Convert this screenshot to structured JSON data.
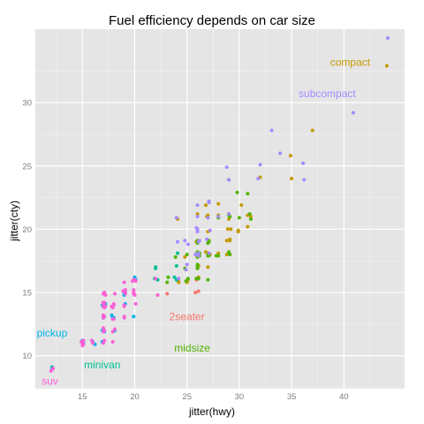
{
  "chart_data": {
    "type": "scatter",
    "title": "Fuel efficiency depends on car size",
    "xlabel": "jitter(hwy)",
    "ylabel": "jitter(cty)",
    "xlim": [
      10.5,
      45.8
    ],
    "ylim": [
      7.4,
      35.8
    ],
    "xticks": [
      15,
      20,
      25,
      30,
      35,
      40
    ],
    "yticks": [
      10,
      15,
      20,
      25,
      30
    ],
    "grid": true,
    "legend": "none",
    "colors": {
      "2seater": "#F8766D",
      "compact": "#C49A00",
      "midsize": "#53B400",
      "minivan": "#00C094",
      "pickup": "#00B6EB",
      "subcompact": "#A58AFF",
      "suv": "#FB61D7"
    },
    "annotations": [
      {
        "label": "compact",
        "x": 40.6,
        "y": 33.2,
        "class": "compact"
      },
      {
        "label": "subcompact",
        "x": 38.4,
        "y": 30.7,
        "class": "subcompact"
      },
      {
        "label": "2seater",
        "x": 25.0,
        "y": 13.1,
        "class": "2seater"
      },
      {
        "label": "midsize",
        "x": 25.5,
        "y": 10.6,
        "class": "midsize"
      },
      {
        "label": "minivan",
        "x": 16.9,
        "y": 9.3,
        "class": "minivan"
      },
      {
        "label": "pickup",
        "x": 12.1,
        "y": 11.8,
        "class": "pickup"
      },
      {
        "label": "suv",
        "x": 11.9,
        "y": 8.0,
        "class": "suv"
      }
    ],
    "series": [
      {
        "class": "2seater",
        "points": [
          [
            26.1,
            15.1
          ],
          [
            25.9,
            16.0
          ],
          [
            24.2,
            15.9
          ],
          [
            25.8,
            15.0
          ],
          [
            23.1,
            14.9
          ]
        ]
      },
      {
        "class": "compact",
        "points": [
          [
            44.1,
            32.9
          ],
          [
            37.0,
            27.8
          ],
          [
            34.9,
            25.8
          ],
          [
            35.0,
            24.0
          ],
          [
            29.1,
            21.0
          ],
          [
            29.0,
            20.8
          ],
          [
            29.9,
            19.9
          ],
          [
            28.0,
            21.1
          ],
          [
            26.9,
            21.0
          ],
          [
            26.0,
            18.1
          ],
          [
            27.2,
            18.0
          ],
          [
            26.8,
            18.2
          ],
          [
            24.8,
            17.8
          ],
          [
            30.2,
            21.9
          ],
          [
            30.8,
            21.1
          ],
          [
            31.1,
            21.0
          ],
          [
            29.1,
            19.2
          ],
          [
            28.0,
            18.1
          ],
          [
            28.8,
            18.0
          ],
          [
            27.0,
            17.0
          ],
          [
            26.1,
            17.1
          ],
          [
            25.1,
            16.0
          ],
          [
            25.0,
            15.8
          ],
          [
            26.1,
            16.2
          ],
          [
            29.1,
            19.1
          ],
          [
            29.0,
            23.9
          ],
          [
            26.0,
            21.2
          ],
          [
            24.1,
            20.8
          ],
          [
            29.2,
            20.0
          ],
          [
            30.8,
            20.2
          ],
          [
            28.8,
            19.1
          ],
          [
            32.0,
            24.1
          ],
          [
            27.0,
            19.8
          ],
          [
            26.8,
            21.9
          ],
          [
            28.0,
            22.0
          ],
          [
            28.9,
            20.0
          ],
          [
            24.2,
            15.8
          ],
          [
            26.0,
            17.8
          ],
          [
            25.9,
            19.0
          ],
          [
            27.0,
            21.1
          ],
          [
            29.9,
            19.8
          ]
        ]
      },
      {
        "class": "midsize",
        "points": [
          [
            29.1,
            21.0
          ],
          [
            29.0,
            18.2
          ],
          [
            27.0,
            18.0
          ],
          [
            27.1,
            17.9
          ],
          [
            26.0,
            17.8
          ],
          [
            26.1,
            16.1
          ],
          [
            27.0,
            16.0
          ],
          [
            24.9,
            15.9
          ],
          [
            26.0,
            19.1
          ],
          [
            27.1,
            19.0
          ],
          [
            26.0,
            18.9
          ],
          [
            30.0,
            20.9
          ],
          [
            31.0,
            21.2
          ],
          [
            29.0,
            21.1
          ],
          [
            28.0,
            20.9
          ],
          [
            29.0,
            18.1
          ],
          [
            27.8,
            17.9
          ],
          [
            26.0,
            17.2
          ],
          [
            24.0,
            16.0
          ],
          [
            23.2,
            16.2
          ],
          [
            23.1,
            15.8
          ],
          [
            25.1,
            16.1
          ],
          [
            26.0,
            16.9
          ],
          [
            26.1,
            19.0
          ],
          [
            25.0,
            18.0
          ],
          [
            23.9,
            17.8
          ],
          [
            26.2,
            18.1
          ],
          [
            27.0,
            18.9
          ],
          [
            27.1,
            19.1
          ],
          [
            30.8,
            22.8
          ],
          [
            29.0,
            21.2
          ],
          [
            31.1,
            20.8
          ],
          [
            26.0,
            17.0
          ],
          [
            25.9,
            16.1
          ],
          [
            29.8,
            22.9
          ],
          [
            27.0,
            17.9
          ],
          [
            29.1,
            18.0
          ],
          [
            26.0,
            18.2
          ],
          [
            28.0,
            17.9
          ],
          [
            26.2,
            17.9
          ],
          [
            24.8,
            16.9
          ]
        ]
      },
      {
        "class": "minivan",
        "points": [
          [
            17.1,
            15.0
          ],
          [
            21.9,
            16.1
          ],
          [
            22.2,
            16.0
          ],
          [
            24.1,
            18.1
          ],
          [
            24.0,
            16.0
          ],
          [
            22.0,
            17.0
          ],
          [
            17.0,
            14.1
          ],
          [
            12.1,
            9.1
          ],
          [
            24.0,
            17.1
          ],
          [
            23.8,
            16.2
          ],
          [
            22.0,
            16.9
          ]
        ]
      },
      {
        "class": "pickup",
        "points": [
          [
            15.1,
            11.0
          ],
          [
            17.1,
            14.0
          ],
          [
            17.0,
            14.2
          ],
          [
            17.1,
            13.9
          ],
          [
            19.1,
            15.0
          ],
          [
            15.0,
            11.1
          ],
          [
            17.1,
            11.9
          ],
          [
            18.1,
            12.0
          ],
          [
            12.1,
            9.0
          ],
          [
            17.2,
            14.1
          ],
          [
            19.0,
            14.0
          ],
          [
            17.0,
            13.0
          ],
          [
            19.0,
            15.0
          ],
          [
            16.9,
            11.1
          ],
          [
            15.0,
            11.2
          ],
          [
            17.1,
            13.9
          ],
          [
            17.1,
            13.1
          ],
          [
            19.9,
            13.1
          ],
          [
            20.1,
            16.0
          ],
          [
            15.9,
            11.2
          ],
          [
            16.9,
            14.0
          ],
          [
            17.9,
            13.0
          ],
          [
            16.2,
            10.9
          ],
          [
            19.0,
            14.8
          ],
          [
            16.9,
            12.0
          ],
          [
            19.1,
            14.1
          ],
          [
            17.0,
            13.9
          ],
          [
            20.0,
            16.2
          ],
          [
            18.0,
            13.0
          ],
          [
            17.8,
            13.2
          ],
          [
            17.0,
            14.0
          ],
          [
            16.0,
            11.1
          ],
          [
            19.0,
            13.0
          ]
        ]
      },
      {
        "class": "subcompact",
        "points": [
          [
            44.2,
            35.1
          ],
          [
            40.9,
            29.2
          ],
          [
            36.1,
            25.2
          ],
          [
            36.2,
            23.9
          ],
          [
            33.1,
            27.8
          ],
          [
            33.9,
            26.0
          ],
          [
            32.0,
            25.1
          ],
          [
            31.8,
            24.0
          ],
          [
            28.8,
            24.9
          ],
          [
            29.0,
            23.9
          ],
          [
            27.1,
            22.2
          ],
          [
            26.0,
            21.9
          ],
          [
            25.9,
            20.1
          ],
          [
            26.0,
            20.0
          ],
          [
            24.0,
            20.9
          ],
          [
            24.1,
            19.0
          ],
          [
            24.2,
            16.1
          ],
          [
            24.9,
            16.8
          ],
          [
            27.0,
            20.9
          ],
          [
            27.2,
            19.9
          ],
          [
            26.0,
            21.0
          ],
          [
            27.1,
            18.1
          ],
          [
            26.1,
            18.1
          ],
          [
            25.1,
            18.8
          ],
          [
            26.2,
            19.1
          ],
          [
            27.1,
            22.1
          ],
          [
            26.9,
            19.2
          ],
          [
            28.0,
            21.0
          ],
          [
            29.0,
            21.2
          ],
          [
            26.0,
            19.8
          ],
          [
            24.8,
            19.1
          ],
          [
            25.8,
            18.0
          ],
          [
            26.1,
            17.9
          ],
          [
            25.0,
            17.2
          ],
          [
            26.1,
            19.0
          ]
        ]
      },
      {
        "class": "suv",
        "points": [
          [
            17.0,
            14.9
          ],
          [
            17.0,
            14.2
          ],
          [
            19.1,
            15.2
          ],
          [
            17.0,
            13.0
          ],
          [
            19.0,
            13.1
          ],
          [
            12.2,
            9.0
          ],
          [
            12.0,
            8.8
          ],
          [
            17.0,
            11.0
          ],
          [
            17.1,
            11.2
          ],
          [
            17.9,
            11.9
          ],
          [
            15.0,
            11.1
          ],
          [
            17.1,
            13.8
          ],
          [
            19.0,
            15.8
          ],
          [
            20.1,
            15.9
          ],
          [
            18.0,
            14.1
          ],
          [
            19.9,
            16.0
          ],
          [
            22.2,
            14.8
          ],
          [
            19.0,
            14.0
          ],
          [
            17.0,
            14.2
          ],
          [
            17.1,
            14.9
          ],
          [
            15.1,
            10.9
          ],
          [
            14.9,
            11.1
          ],
          [
            17.0,
            13.2
          ],
          [
            17.1,
            12.0
          ],
          [
            18.0,
            12.9
          ],
          [
            19.0,
            13.9
          ],
          [
            17.9,
            12.9
          ],
          [
            17.0,
            14.0
          ],
          [
            17.9,
            11.1
          ],
          [
            19.8,
            15.9
          ],
          [
            19.9,
            15.2
          ],
          [
            15.0,
            11.0
          ],
          [
            17.2,
            13.9
          ],
          [
            17.0,
            12.2
          ],
          [
            19.1,
            14.9
          ],
          [
            18.0,
            14.0
          ],
          [
            17.1,
            15.0
          ],
          [
            19.1,
            15.1
          ],
          [
            17.9,
            13.8
          ],
          [
            19.9,
            14.9
          ],
          [
            22.0,
            16.1
          ],
          [
            20.0,
            14.8
          ],
          [
            15.1,
            11.2
          ],
          [
            17.1,
            13.1
          ],
          [
            17.0,
            11.9
          ],
          [
            18.1,
            12.1
          ],
          [
            19.0,
            13.0
          ],
          [
            17.0,
            13.9
          ],
          [
            20.0,
            16.0
          ],
          [
            18.9,
            15.1
          ],
          [
            17.1,
            14.2
          ],
          [
            17.8,
            13.9
          ],
          [
            19.9,
            15.0
          ],
          [
            16.0,
            11.0
          ],
          [
            17.0,
            11.9
          ],
          [
            18.1,
            14.9
          ],
          [
            17.0,
            14.9
          ],
          [
            19.1,
            15.2
          ],
          [
            17.2,
            14.8
          ],
          [
            20.1,
            14.1
          ],
          [
            15.9,
            11.2
          ],
          [
            15.0,
            10.8
          ]
        ]
      }
    ]
  }
}
